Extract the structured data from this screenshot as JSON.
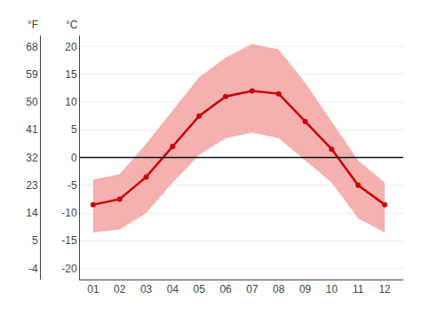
{
  "chart_data": {
    "type": "line",
    "x": [
      1,
      2,
      3,
      4,
      5,
      6,
      7,
      8,
      9,
      10,
      11,
      12
    ],
    "xlim": [
      0.5,
      12.7
    ],
    "xticks": [
      {
        "value": 1,
        "label": "01"
      },
      {
        "value": 2,
        "label": "02"
      },
      {
        "value": 3,
        "label": "03"
      },
      {
        "value": 4,
        "label": "04"
      },
      {
        "value": 5,
        "label": "05"
      },
      {
        "value": 6,
        "label": "06"
      },
      {
        "value": 7,
        "label": "07"
      },
      {
        "value": 8,
        "label": "08"
      },
      {
        "value": 9,
        "label": "09"
      },
      {
        "value": 10,
        "label": "10"
      },
      {
        "value": 11,
        "label": "11"
      },
      {
        "value": 12,
        "label": "12"
      }
    ],
    "ylabel": "°C",
    "ylim": [
      -22,
      22
    ],
    "yticks": [
      -20,
      -15,
      -10,
      -5,
      0,
      5,
      10,
      15,
      20
    ],
    "y2label": "°F",
    "y2lim": [
      -7.6,
      71.6
    ],
    "y2ticks": [
      -4,
      5,
      14,
      23,
      32,
      41,
      50,
      59,
      68
    ],
    "grid": "y",
    "series": [
      {
        "type": "band",
        "color": "#f5b0b0",
        "low": [
          -13.5,
          -13.0,
          -10.0,
          -4.5,
          0.5,
          3.5,
          4.5,
          3.5,
          -0.5,
          -4.5,
          -11.0,
          -13.5
        ],
        "high": [
          -4.0,
          -3.0,
          2.5,
          8.5,
          14.5,
          18.0,
          20.5,
          19.5,
          13.5,
          6.5,
          -0.5,
          -4.5
        ]
      },
      {
        "type": "hline",
        "color": "#111111",
        "value": 0
      },
      {
        "type": "line",
        "color": "#cc0000",
        "marker": "circle",
        "line_style": "solid",
        "values": [
          -8.5,
          -7.5,
          -3.5,
          2.0,
          7.5,
          11.0,
          12.0,
          11.5,
          6.5,
          1.5,
          -5.0,
          -8.5
        ]
      }
    ]
  }
}
